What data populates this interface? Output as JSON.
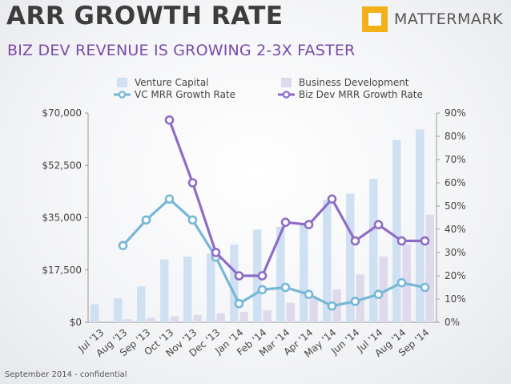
{
  "header": {
    "title": "ARR GROWTH RATE",
    "subtitle": "BIZ DEV REVENUE IS GROWING 2-3X FASTER",
    "brand": "MATTERMARK"
  },
  "footer": {
    "note": "September 2014 - confidential"
  },
  "colors": {
    "vc_bar": "#cfe0f2",
    "bd_bar": "#dedaec",
    "vc_line": "#76b7d8",
    "bd_line": "#8e6cc6",
    "subtitle": "#7b4aa8",
    "brand": "#f2b019"
  },
  "chart_data": {
    "type": "bar",
    "categories": [
      "Jul '13",
      "Aug '13",
      "Sep '13",
      "Oct '13",
      "Nov '13",
      "Dec '13",
      "Jan '14",
      "Feb '14",
      "Mar '14",
      "Apr '14",
      "May '14",
      "Jun '14",
      "Jul '14",
      "Aug '14",
      "Sep '14"
    ],
    "left_axis": {
      "ylim": [
        0,
        70000
      ],
      "ticks": [
        "$0",
        "$17,500",
        "$35,000",
        "$52,500",
        "$70,000"
      ]
    },
    "right_axis": {
      "ylim": [
        0,
        90
      ],
      "ticks": [
        "0%",
        "10%",
        "20%",
        "30%",
        "40%",
        "50%",
        "60%",
        "70%",
        "80%",
        "90%"
      ]
    },
    "series": [
      {
        "name": "Venture Capital",
        "kind": "bar",
        "axis": "left",
        "values": [
          6000,
          8000,
          12000,
          21000,
          22000,
          23000,
          26000,
          31000,
          32000,
          33000,
          41000,
          43000,
          48000,
          61000,
          64500
        ]
      },
      {
        "name": "Business Development",
        "kind": "bar",
        "axis": "left",
        "values": [
          0,
          1000,
          1500,
          2000,
          2500,
          3000,
          3500,
          4000,
          6500,
          8000,
          11000,
          16000,
          22000,
          26000,
          36000
        ]
      },
      {
        "name": "VC MRR Growth Rate",
        "kind": "line",
        "axis": "right",
        "values": [
          null,
          33,
          44,
          53,
          44,
          28,
          8,
          14,
          15,
          12,
          7,
          9,
          12,
          17,
          15
        ]
      },
      {
        "name": "Biz Dev MRR Growth Rate",
        "kind": "line",
        "axis": "right",
        "values": [
          null,
          null,
          null,
          87,
          60,
          30,
          20,
          20,
          43,
          42,
          53,
          35,
          42,
          35,
          35
        ]
      }
    ],
    "legend_position": "top"
  }
}
